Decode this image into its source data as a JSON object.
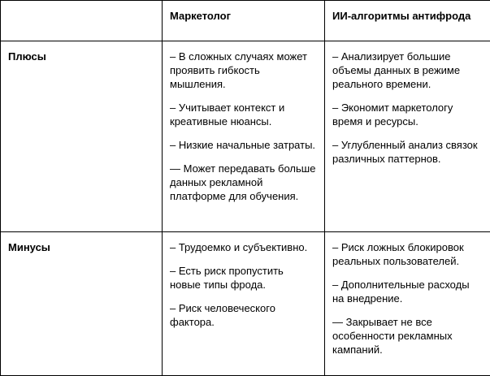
{
  "table": {
    "headers": [
      "",
      "Маркетолог",
      "ИИ-алгоритмы антифрода"
    ],
    "rows": [
      {
        "label": "Плюсы",
        "marketer": [
          "– В сложных случаях может проявить гибкость мышления.",
          "– Учитывает контекст и креативные нюансы.",
          "– Низкие начальные затраты.",
          "— Может передавать больше данных рекламной платформе для обучения."
        ],
        "ai": [
          "– Анализирует большие объемы данных в режиме реального времени.",
          "– Экономит маркетологу время и ресурсы.",
          "– Углубленный анализ связок различных паттернов."
        ]
      },
      {
        "label": "Минусы",
        "marketer": [
          "– Трудоемко и субъективно.",
          "– Есть риск пропустить новые типы фрода.",
          "– Риск человеческого фактора."
        ],
        "ai": [
          "– Риск ложных блокировок реальных пользователей.",
          "– Дополнительные расходы на внедрение.",
          "— Закрывает не все особенности рекламных кампаний."
        ]
      }
    ]
  }
}
